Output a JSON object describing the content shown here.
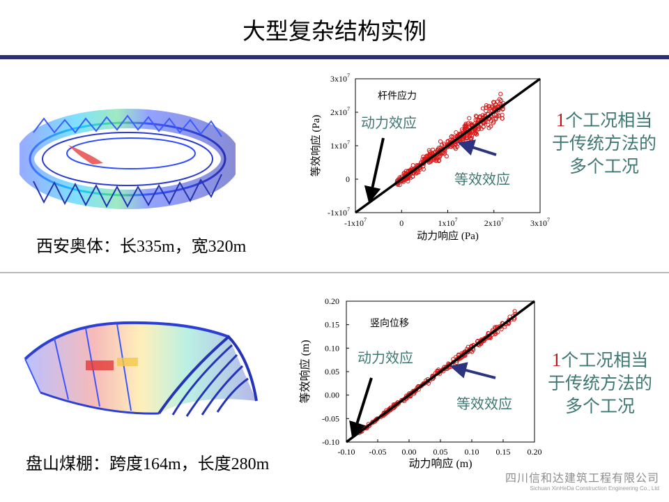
{
  "slide": {
    "title": "大型复杂结构实例"
  },
  "upper": {
    "caption": "西安奥体：长335m，宽320m",
    "note_num": "1",
    "note_line1": "个工况相当",
    "note_line2": "于传统方法的",
    "note_line3": "多个工况"
  },
  "lower": {
    "caption": "盘山煤棚：跨度164m，长度280m",
    "note_num": "1",
    "note_line1": "个工况相当",
    "note_line2": "于传统方法的",
    "note_line3": "多个工况"
  },
  "logo": {
    "cn": "四川信和达建筑工程有限公司",
    "en": "Sichuan XinHeDa Construction Engineering Co., Ltd"
  },
  "chart_data": [
    {
      "type": "scatter",
      "title": "杆件应力",
      "xlabel": "动力响应 (Pa)",
      "ylabel": "等效响应 (Pa)",
      "xlim": [
        -10000000,
        30000000
      ],
      "ylim": [
        -10000000,
        30000000
      ],
      "xticks": [
        {
          "v": -10000000,
          "b": "-1x10",
          "e": "7"
        },
        {
          "v": 0,
          "b": "0",
          "e": ""
        },
        {
          "v": 10000000,
          "b": "1x10",
          "e": "7"
        },
        {
          "v": 20000000,
          "b": "2x10",
          "e": "7"
        },
        {
          "v": 30000000,
          "b": "3x10",
          "e": "7"
        }
      ],
      "yticks": [
        {
          "v": -10000000,
          "b": "-1x10",
          "e": "7"
        },
        {
          "v": 0,
          "b": "0",
          "e": ""
        },
        {
          "v": 10000000,
          "b": "1x10",
          "e": "7"
        },
        {
          "v": 20000000,
          "b": "2x10",
          "e": "7"
        },
        {
          "v": 30000000,
          "b": "3x10",
          "e": "7"
        }
      ],
      "reference_line": {
        "x": [
          -10000000,
          30000000
        ],
        "y": [
          -10000000,
          30000000
        ]
      },
      "annotations": {
        "dynamic": "动力效应",
        "equivalent": "等效效应"
      },
      "scatter_region": {
        "x_range": [
          -1000000,
          22000000
        ],
        "y_range": [
          -1000000,
          22000000
        ],
        "spread": 3000000,
        "count": 420
      },
      "colors": {
        "marker": "#d61a1a",
        "line": "#000000",
        "arrow_black": "#000000",
        "arrow_blue": "#2b3280"
      }
    },
    {
      "type": "scatter",
      "title": "竖向位移",
      "xlabel": "动力响应 (m)",
      "ylabel": "等效响应 (m)",
      "xlim": [
        -0.1,
        0.2
      ],
      "ylim": [
        -0.1,
        0.2
      ],
      "xticks": [
        {
          "v": -0.1,
          "b": "-0.10",
          "e": ""
        },
        {
          "v": -0.05,
          "b": "-0.05",
          "e": ""
        },
        {
          "v": 0,
          "b": "0.00",
          "e": ""
        },
        {
          "v": 0.05,
          "b": "0.05",
          "e": ""
        },
        {
          "v": 0.1,
          "b": "0.10",
          "e": ""
        },
        {
          "v": 0.15,
          "b": "0.15",
          "e": ""
        },
        {
          "v": 0.2,
          "b": "0.20",
          "e": ""
        }
      ],
      "yticks": [
        {
          "v": -0.1,
          "b": "-0.10",
          "e": ""
        },
        {
          "v": -0.05,
          "b": "-0.05",
          "e": ""
        },
        {
          "v": 0,
          "b": "0.00",
          "e": ""
        },
        {
          "v": 0.05,
          "b": "0.05",
          "e": ""
        },
        {
          "v": 0.1,
          "b": "0.10",
          "e": ""
        },
        {
          "v": 0.15,
          "b": "0.15",
          "e": ""
        },
        {
          "v": 0.2,
          "b": "0.20",
          "e": ""
        }
      ],
      "reference_line": {
        "x": [
          -0.1,
          0.2
        ],
        "y": [
          -0.1,
          0.2
        ]
      },
      "annotations": {
        "dynamic": "动力效应",
        "equivalent": "等效效应"
      },
      "scatter_region": {
        "x_range": [
          -0.08,
          0.17
        ],
        "y_range": [
          -0.08,
          0.17
        ],
        "spread": 0.008,
        "count": 260
      },
      "colors": {
        "marker": "#d61a1a",
        "line": "#000000",
        "arrow_black": "#000000",
        "arrow_blue": "#2b3280"
      }
    }
  ]
}
